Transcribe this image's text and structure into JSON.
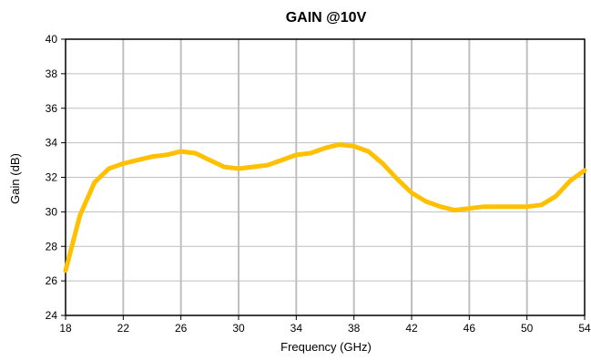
{
  "chart_data": {
    "type": "line",
    "title": "GAIN @10V",
    "xlabel": "Frequency (GHz)",
    "ylabel": "Gain (dB)",
    "xlim": [
      18,
      54
    ],
    "ylim": [
      24,
      40
    ],
    "x_ticks": [
      18,
      22,
      26,
      30,
      34,
      38,
      42,
      46,
      50,
      54
    ],
    "y_ticks": [
      24,
      26,
      28,
      30,
      32,
      34,
      36,
      38,
      40
    ],
    "grid": "vertical",
    "legend": "none",
    "series": [
      {
        "color": "#FFC000",
        "x": [
          18,
          18.5,
          19,
          20,
          21,
          22,
          23,
          24,
          25,
          26,
          27,
          28,
          29,
          30,
          31,
          32,
          33,
          34,
          35,
          36,
          37,
          38,
          39,
          40,
          41,
          42,
          43,
          44,
          45,
          46,
          47,
          48,
          49,
          50,
          51,
          52,
          53,
          54
        ],
        "y": [
          26.6,
          28.2,
          29.8,
          31.7,
          32.5,
          32.8,
          33.0,
          33.2,
          33.3,
          33.5,
          33.4,
          33.0,
          32.6,
          32.5,
          32.6,
          32.7,
          33.0,
          33.3,
          33.4,
          33.7,
          33.9,
          33.8,
          33.5,
          32.8,
          31.9,
          31.1,
          30.6,
          30.3,
          30.1,
          30.2,
          30.3,
          30.3,
          30.3,
          30.3,
          30.4,
          30.9,
          31.8,
          32.4
        ]
      }
    ]
  }
}
